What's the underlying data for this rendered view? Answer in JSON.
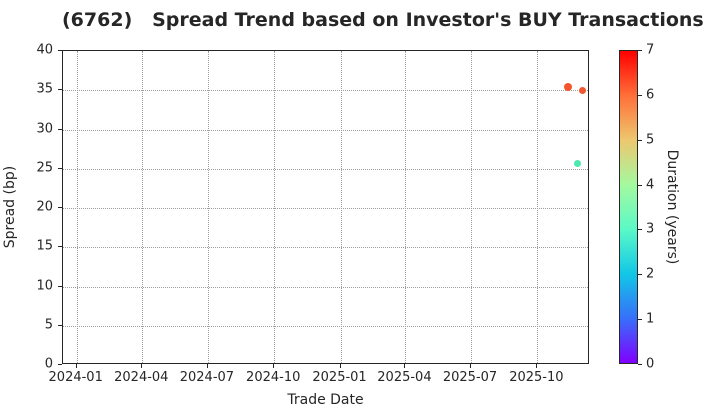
{
  "title": "(6762)   Spread Trend based on Investor's BUY Transactions",
  "colors": {
    "background": "#ffffff",
    "text": "#262626",
    "spine": "#262626",
    "grid": "#9e9e9e"
  },
  "chart_data": {
    "type": "scatter",
    "title": "(6762)   Spread Trend based on Investor's BUY Transactions",
    "xlabel": "Trade Date",
    "ylabel": "Spread (bp)",
    "grid": true,
    "xlim": [
      "2023-12-13",
      "2025-12-13"
    ],
    "ylim": [
      0,
      40
    ],
    "x_ticks": [
      {
        "date": "2024-01-01",
        "label": "2024-01"
      },
      {
        "date": "2024-04-01",
        "label": "2024-04"
      },
      {
        "date": "2024-07-01",
        "label": "2024-07"
      },
      {
        "date": "2024-10-01",
        "label": "2024-10"
      },
      {
        "date": "2025-01-01",
        "label": "2025-01"
      },
      {
        "date": "2025-04-01",
        "label": "2025-04"
      },
      {
        "date": "2025-07-01",
        "label": "2025-07"
      },
      {
        "date": "2025-10-01",
        "label": "2025-10"
      }
    ],
    "y_ticks": [
      0,
      5,
      10,
      15,
      20,
      25,
      30,
      35,
      40
    ],
    "points": [
      {
        "date": "2025-11-13",
        "spread": 35.4,
        "duration_years": 6.2,
        "color": "#f4542c",
        "size": 8
      },
      {
        "date": "2025-12-02",
        "spread": 35.0,
        "duration_years": 6.1,
        "color": "#f2572e",
        "size": 7
      },
      {
        "date": "2025-11-26",
        "spread": 25.7,
        "duration_years": 3.0,
        "color": "#4ce9af",
        "size": 7
      }
    ],
    "colorbar": {
      "label": "Duration (years)",
      "min": 0,
      "max": 7,
      "ticks": [
        0,
        1,
        2,
        3,
        4,
        5,
        6,
        7
      ],
      "colormap": "rainbow",
      "gradient_stops_bottom_to_top": [
        "#8000ff",
        "#376ff9",
        "#12c7e6",
        "#5bf9c7",
        "#a4f99f",
        "#edc76f",
        "#ff6f39",
        "#ff0000"
      ]
    }
  }
}
